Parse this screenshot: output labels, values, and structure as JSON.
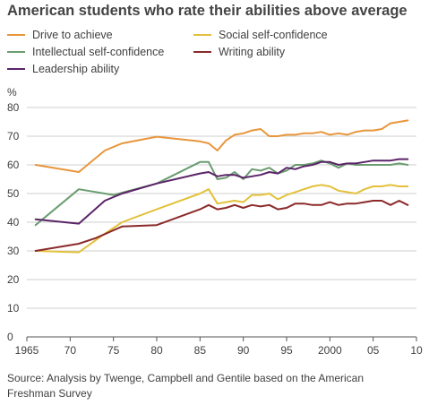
{
  "chart_data": {
    "type": "line",
    "title": "American students who rate their abilities above average",
    "ylabel": "%",
    "ylim": [
      0,
      80
    ],
    "xlim": [
      1965,
      2010
    ],
    "yticks": [
      0,
      10,
      20,
      30,
      40,
      50,
      60,
      70,
      80
    ],
    "xticks": [
      {
        "value": 1965,
        "label": "1965"
      },
      {
        "value": 1970,
        "label": "70"
      },
      {
        "value": 1975,
        "label": "75"
      },
      {
        "value": 1980,
        "label": "80"
      },
      {
        "value": 1985,
        "label": "85"
      },
      {
        "value": 1990,
        "label": "90"
      },
      {
        "value": 1995,
        "label": "95"
      },
      {
        "value": 2000,
        "label": "2000"
      },
      {
        "value": 2005,
        "label": "05"
      },
      {
        "value": 2010,
        "label": "10"
      }
    ],
    "grid": "horizontal",
    "legend_position": "top",
    "series": [
      {
        "name": "Drive to achieve",
        "color": "#E8963C",
        "x": [
          1966,
          1971,
          1974,
          1976,
          1980,
          1985,
          1986,
          1987,
          1988,
          1989,
          1990,
          1991,
          1992,
          1993,
          1994,
          1995,
          1996,
          1997,
          1998,
          1999,
          2000,
          2001,
          2002,
          2003,
          2004,
          2005,
          2006,
          2007,
          2008,
          2009
        ],
        "y": [
          60,
          57.5,
          65,
          67.5,
          69.8,
          68.2,
          67.5,
          65,
          68.5,
          70.5,
          71,
          72,
          72.5,
          70,
          70,
          70.5,
          70.5,
          71,
          71,
          71.5,
          70.5,
          71,
          70.5,
          71.5,
          72,
          72,
          72.5,
          74.5,
          75,
          75.5
        ]
      },
      {
        "name": "Social self-confidence",
        "color": "#E3C13B",
        "x": [
          1966,
          1971,
          1974,
          1976,
          1980,
          1985,
          1986,
          1987,
          1988,
          1989,
          1990,
          1991,
          1992,
          1993,
          1994,
          1995,
          1996,
          1997,
          1998,
          1999,
          2000,
          2001,
          2002,
          2003,
          2004,
          2005,
          2006,
          2007,
          2008,
          2009
        ],
        "y": [
          30,
          29.5,
          36,
          40,
          44.5,
          50,
          51.5,
          46.5,
          47,
          47.5,
          47,
          49.5,
          49.5,
          50,
          48,
          49.5,
          50.5,
          51.5,
          52.5,
          53,
          52.5,
          51,
          50.5,
          50,
          51.5,
          52.5,
          52.5,
          53,
          52.5,
          52.5
        ]
      },
      {
        "name": "Intellectual self-confidence",
        "color": "#6A9D70",
        "x": [
          1966,
          1971,
          1975,
          1980,
          1985,
          1986,
          1987,
          1988,
          1989,
          1990,
          1991,
          1992,
          1993,
          1994,
          1995,
          1996,
          1997,
          1998,
          1999,
          2000,
          2001,
          2002,
          2003,
          2004,
          2005,
          2006,
          2007,
          2008,
          2009
        ],
        "y": [
          39,
          51.5,
          49.5,
          53.5,
          61,
          61,
          55,
          55.5,
          57.5,
          55,
          58.5,
          58,
          59,
          57,
          58,
          60,
          60,
          60.5,
          61.5,
          60.5,
          59,
          60.5,
          60,
          60,
          60,
          60,
          60,
          60.5,
          60
        ]
      },
      {
        "name": "Writing ability",
        "color": "#8B2A2A",
        "x": [
          1966,
          1971,
          1973,
          1976,
          1980,
          1985,
          1986,
          1987,
          1988,
          1989,
          1990,
          1991,
          1992,
          1993,
          1994,
          1995,
          1996,
          1997,
          1998,
          1999,
          2000,
          2001,
          2002,
          2003,
          2004,
          2005,
          2006,
          2007,
          2008,
          2009
        ],
        "y": [
          30,
          32.5,
          34.5,
          38.5,
          39,
          44.5,
          46,
          44.5,
          45,
          46,
          45,
          46,
          45.5,
          46,
          44.5,
          45,
          46.5,
          46.5,
          46,
          46,
          47,
          46,
          46.5,
          46.5,
          47,
          47.5,
          47.5,
          46,
          47.5,
          46
        ]
      },
      {
        "name": "Leadership ability",
        "color": "#5B2468",
        "x": [
          1966,
          1971,
          1974,
          1976,
          1980,
          1985,
          1986,
          1987,
          1988,
          1989,
          1990,
          1991,
          1992,
          1993,
          1994,
          1995,
          1996,
          1997,
          1998,
          1999,
          2000,
          2001,
          2002,
          2003,
          2004,
          2005,
          2006,
          2007,
          2008,
          2009
        ],
        "y": [
          41,
          39.5,
          47.5,
          50,
          53.5,
          57,
          57.5,
          56,
          56.5,
          56.5,
          55.5,
          56,
          56.5,
          57.5,
          57,
          59,
          58.5,
          59.5,
          60,
          61,
          61,
          60,
          60.5,
          60.5,
          61,
          61.5,
          61.5,
          61.5,
          62,
          62
        ]
      }
    ]
  },
  "legend": [
    {
      "label": "Drive to achieve",
      "color": "#E8963C"
    },
    {
      "label": "Social self-confidence",
      "color": "#E3C13B"
    },
    {
      "label": "Intellectual self-confidence",
      "color": "#6A9D70"
    },
    {
      "label": "Writing ability",
      "color": "#8B2A2A"
    },
    {
      "label": "Leadership ability",
      "color": "#5B2468"
    }
  ],
  "source": "Source: Analysis by Twenge, Campbell and Gentile based on the American Freshman Survey"
}
